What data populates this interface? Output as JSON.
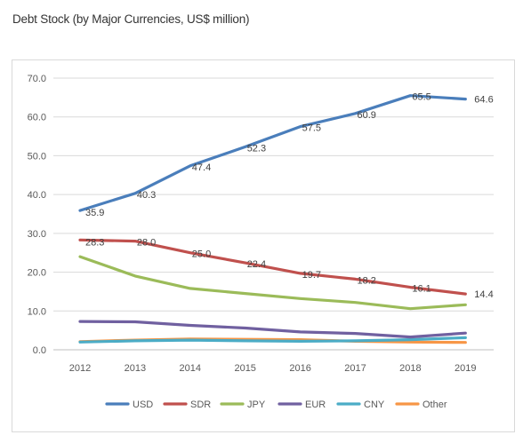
{
  "chart_data": {
    "type": "line",
    "title": "Debt Stock (by Major Currencies, US$ million)",
    "xlabel": "",
    "ylabel": "",
    "x": [
      "2012",
      "2013",
      "2014",
      "2015",
      "2016",
      "2017",
      "2018",
      "2019"
    ],
    "ylim": [
      0,
      70
    ],
    "yticks": [
      "0.0",
      "10.0",
      "20.0",
      "30.0",
      "40.0",
      "50.0",
      "60.0",
      "70.0"
    ],
    "grid": true,
    "legend_position": "bottom",
    "series": [
      {
        "name": "USD",
        "color": "#4a7ebb",
        "values": [
          35.9,
          40.3,
          47.4,
          52.3,
          57.5,
          60.9,
          65.5,
          64.6
        ],
        "labels": [
          "35.9",
          "40.3",
          "47.4",
          "52.3",
          "57.5",
          "60.9",
          "65.5",
          "64.6"
        ]
      },
      {
        "name": "SDR",
        "color": "#c0504d",
        "values": [
          28.3,
          28.0,
          25.0,
          22.4,
          19.7,
          18.2,
          16.1,
          14.4
        ],
        "labels": [
          "28.3",
          "28.0",
          "25.0",
          "22.4",
          "19.7",
          "18.2",
          "16.1",
          "14.4"
        ]
      },
      {
        "name": "JPY",
        "color": "#9bbb59",
        "values": [
          24.0,
          19.0,
          15.8,
          14.5,
          13.2,
          12.2,
          10.6,
          11.6
        ]
      },
      {
        "name": "EUR",
        "color": "#7060a0",
        "values": [
          7.3,
          7.2,
          6.3,
          5.6,
          4.6,
          4.2,
          3.3,
          4.3
        ]
      },
      {
        "name": "CNY",
        "color": "#4bacc6",
        "values": [
          2.0,
          2.3,
          2.5,
          2.3,
          2.2,
          2.3,
          2.6,
          3.1
        ]
      },
      {
        "name": "Other",
        "color": "#f79646",
        "values": [
          2.1,
          2.5,
          2.8,
          2.7,
          2.6,
          2.2,
          2.0,
          1.9
        ]
      }
    ]
  }
}
